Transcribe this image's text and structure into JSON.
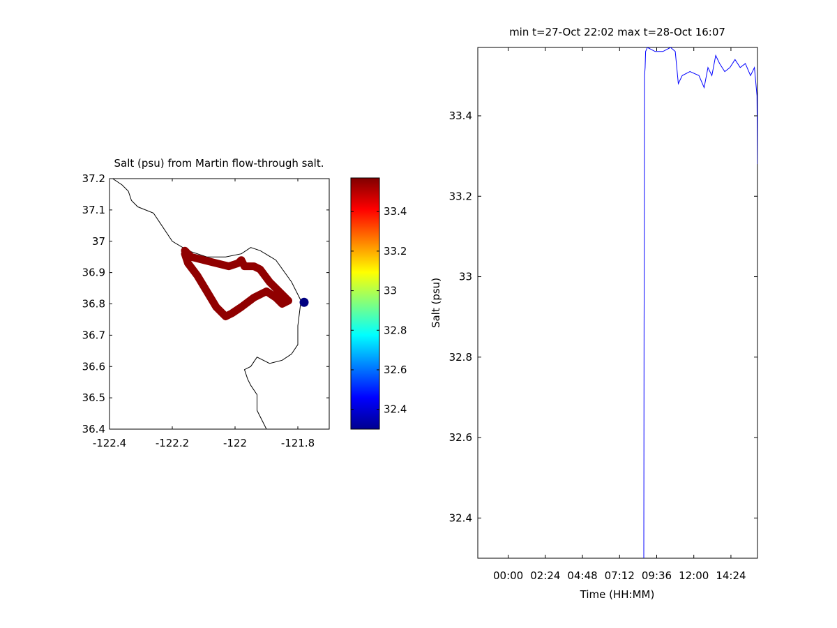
{
  "chart_data": [
    {
      "type": "scatter",
      "title": "Salt (psu) from Martin flow-through salt.",
      "xlabel": "",
      "ylabel": "",
      "xlim": [
        -122.4,
        -121.7
      ],
      "ylim": [
        36.4,
        37.2
      ],
      "xticks": [
        "-122.4",
        "-122.2",
        "-122",
        "-121.8"
      ],
      "yticks": [
        "36.4",
        "36.5",
        "36.6",
        "36.7",
        "36.8",
        "36.9",
        "37",
        "37.1",
        "37.2"
      ],
      "grid": false,
      "coastline": [
        [
          -122.39,
          37.2
        ],
        [
          -122.36,
          37.18
        ],
        [
          -122.34,
          37.16
        ],
        [
          -122.33,
          37.13
        ],
        [
          -122.31,
          37.11
        ],
        [
          -122.26,
          37.09
        ],
        [
          -122.24,
          37.06
        ],
        [
          -122.2,
          37.0
        ],
        [
          -122.15,
          36.97
        ],
        [
          -122.09,
          36.95
        ],
        [
          -122.03,
          36.95
        ],
        [
          -121.98,
          36.96
        ],
        [
          -121.95,
          36.98
        ],
        [
          -121.92,
          36.97
        ],
        [
          -121.87,
          36.94
        ],
        [
          -121.82,
          36.87
        ],
        [
          -121.79,
          36.81
        ],
        [
          -121.8,
          36.73
        ],
        [
          -121.8,
          36.67
        ],
        [
          -121.82,
          36.64
        ],
        [
          -121.85,
          36.62
        ],
        [
          -121.89,
          36.61
        ],
        [
          -121.93,
          36.63
        ],
        [
          -121.95,
          36.6
        ],
        [
          -121.97,
          36.59
        ],
        [
          -121.96,
          36.56
        ],
        [
          -121.95,
          36.54
        ],
        [
          -121.93,
          36.51
        ],
        [
          -121.93,
          36.46
        ],
        [
          -121.91,
          36.42
        ],
        [
          -121.9,
          36.4
        ]
      ],
      "track": {
        "salinity_psu": 33.55,
        "points": [
          [
            -122.16,
            36.97
          ],
          [
            -122.14,
            36.95
          ],
          [
            -122.1,
            36.94
          ],
          [
            -122.06,
            36.93
          ],
          [
            -122.02,
            36.92
          ],
          [
            -121.99,
            36.93
          ],
          [
            -121.98,
            36.94
          ],
          [
            -121.97,
            36.92
          ],
          [
            -121.94,
            36.92
          ],
          [
            -121.92,
            36.91
          ],
          [
            -121.89,
            36.87
          ],
          [
            -121.85,
            36.83
          ],
          [
            -121.83,
            36.81
          ],
          [
            -121.85,
            36.8
          ],
          [
            -121.87,
            36.82
          ],
          [
            -121.9,
            36.84
          ],
          [
            -121.94,
            36.82
          ],
          [
            -121.98,
            36.79
          ],
          [
            -122.01,
            36.77
          ],
          [
            -122.03,
            36.76
          ],
          [
            -122.06,
            36.79
          ],
          [
            -122.09,
            36.84
          ],
          [
            -122.12,
            36.89
          ],
          [
            -122.15,
            36.93
          ],
          [
            -122.16,
            36.96
          ]
        ]
      },
      "endpoint": {
        "lon": -121.78,
        "lat": 36.805,
        "salinity_psu": 32.3
      }
    },
    {
      "type": "colorbar",
      "colormap": "jet",
      "range": [
        32.3,
        33.57
      ],
      "ticks": [
        "32.4",
        "32.6",
        "32.8",
        "33",
        "33.2",
        "33.4"
      ]
    },
    {
      "type": "line",
      "title": "min t=27-Oct 22:02 max t=28-Oct 16:07",
      "xlabel": "Time (HH:MM)",
      "ylabel": "Salt (psu)",
      "xlim": [
        "27-Oct 22:02",
        "28-Oct 16:07"
      ],
      "ylim": [
        32.3,
        33.57
      ],
      "xticks": [
        "00:00",
        "02:24",
        "04:48",
        "07:12",
        "09:36",
        "12:00",
        "14:24"
      ],
      "yticks": [
        "32.4",
        "32.6",
        "32.8",
        "33",
        "33.2",
        "33.4"
      ],
      "grid": false,
      "series": [
        {
          "color": "#0000ff",
          "x": [
            "28-Oct 08:46",
            "28-Oct 08:47",
            "28-Oct 08:48",
            "28-Oct 08:49",
            "28-Oct 08:51",
            "28-Oct 08:53",
            "28-Oct 09:00",
            "28-Oct 09:30",
            "28-Oct 10:00",
            "28-Oct 10:30",
            "28-Oct 10:48",
            "28-Oct 11:00",
            "28-Oct 11:15",
            "28-Oct 11:45",
            "28-Oct 12:20",
            "28-Oct 12:40",
            "28-Oct 12:55",
            "28-Oct 13:10",
            "28-Oct 13:25",
            "28-Oct 13:40",
            "28-Oct 14:00",
            "28-Oct 14:20",
            "28-Oct 14:40",
            "28-Oct 15:00",
            "28-Oct 15:20",
            "28-Oct 15:40",
            "28-Oct 15:55",
            "28-Oct 16:05",
            "28-Oct 16:07"
          ],
          "y": [
            32.3,
            32.88,
            33.1,
            33.5,
            33.52,
            33.56,
            33.57,
            33.56,
            33.56,
            33.57,
            33.56,
            33.48,
            33.5,
            33.51,
            33.5,
            33.47,
            33.52,
            33.5,
            33.55,
            33.53,
            33.51,
            33.52,
            33.54,
            33.52,
            33.53,
            33.5,
            33.52,
            33.45,
            33.28
          ]
        }
      ]
    }
  ]
}
